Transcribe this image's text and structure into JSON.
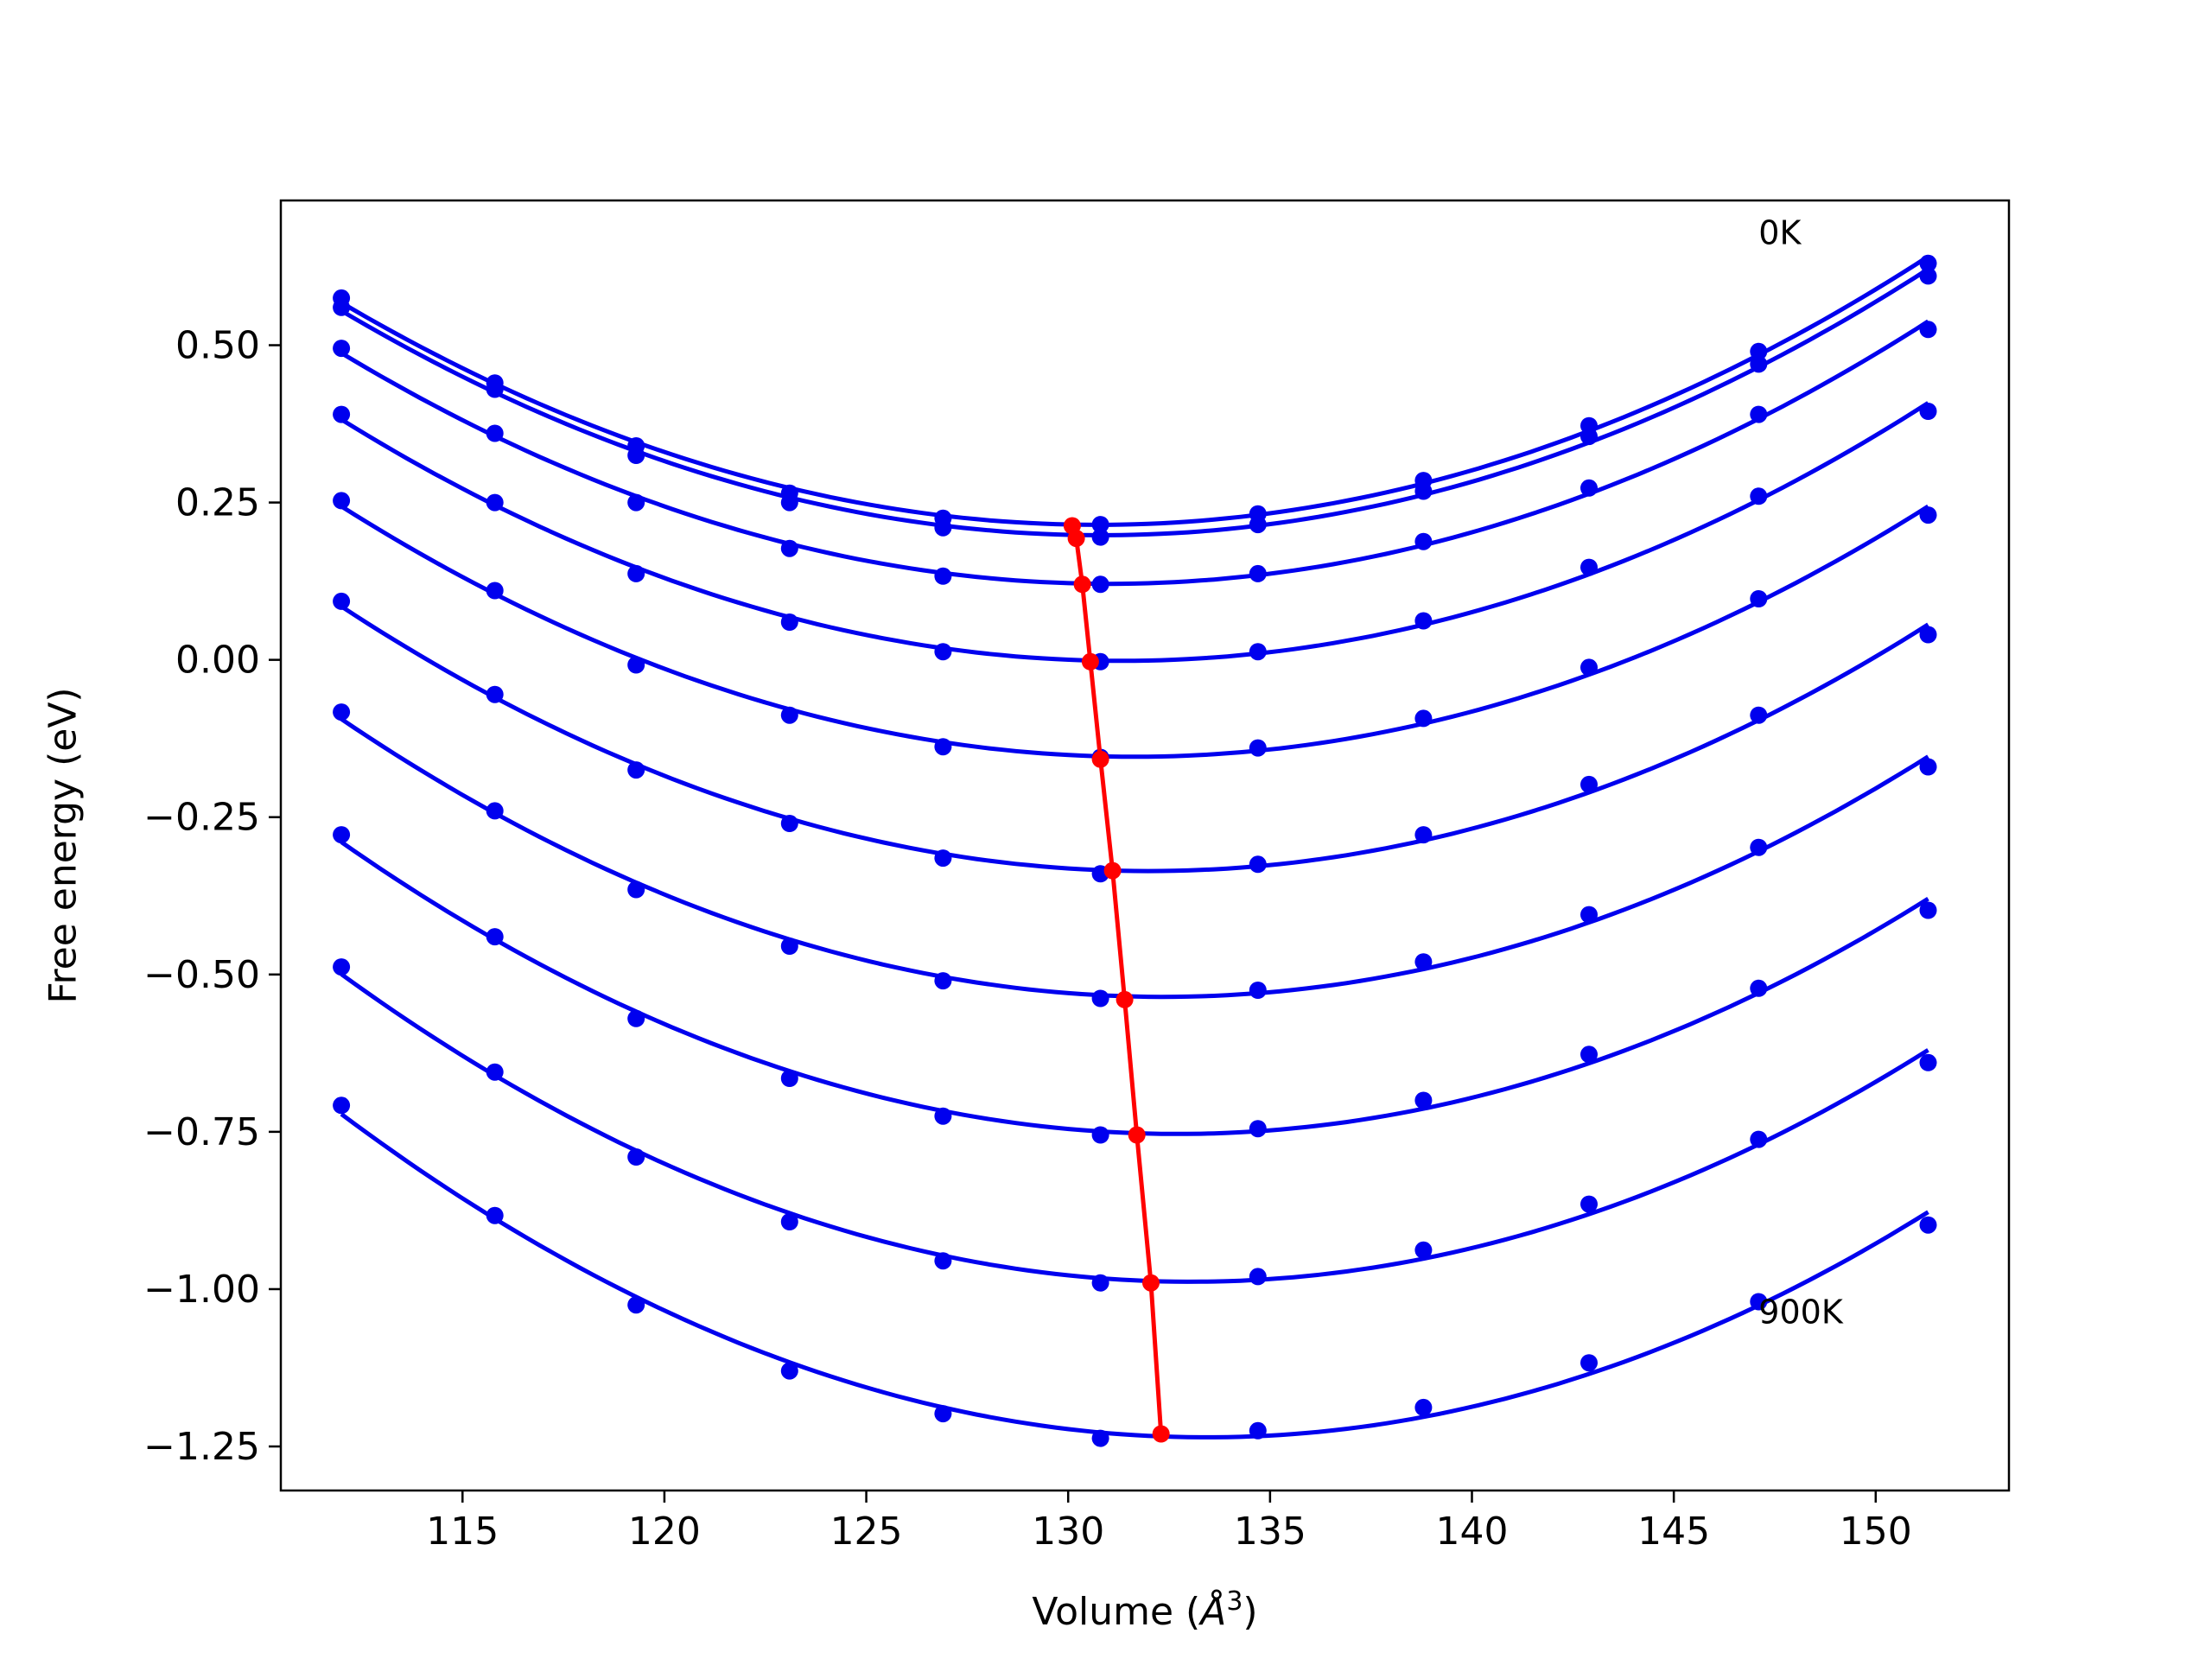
{
  "chart_data": {
    "type": "line",
    "title": "",
    "xlabel": "Volume (",
    "xlabel_symbol": "Å",
    "xlabel_exp": "3",
    "xlabel_close": ")",
    "ylabel": "Free energy (eV)",
    "xlim": [
      110.5,
      153.3
    ],
    "ylim": [
      -1.32,
      0.73
    ],
    "xticks": [
      115,
      120,
      125,
      130,
      135,
      140,
      145,
      150
    ],
    "xtick_labels": [
      "115",
      "120",
      "125",
      "130",
      "135",
      "140",
      "145",
      "150"
    ],
    "yticks": [
      0.5,
      0.25,
      0.0,
      -0.25,
      -0.5,
      -0.75,
      -1.0,
      -1.25
    ],
    "ytick_labels": [
      "0.50",
      "0.25",
      "0.00",
      "−0.25",
      "−0.50",
      "−0.75",
      "−1.00",
      "−1.25"
    ],
    "grid": false,
    "x": [
      112.0,
      115.8,
      119.3,
      123.1,
      126.9,
      130.8,
      134.7,
      138.8,
      142.9,
      147.1,
      151.3
    ],
    "series": [
      {
        "values": [
          0.575,
          0.44,
          0.34,
          0.265,
          0.225,
          0.215,
          0.232,
          0.285,
          0.372,
          0.49,
          0.63
        ]
      },
      {
        "values": [
          0.56,
          0.43,
          0.325,
          0.25,
          0.21,
          0.195,
          0.215,
          0.268,
          0.355,
          0.47,
          0.61
        ]
      },
      {
        "values": [
          0.495,
          0.36,
          0.25,
          0.177,
          0.133,
          0.12,
          0.137,
          0.188,
          0.273,
          0.39,
          0.525
        ]
      },
      {
        "values": [
          0.39,
          0.25,
          0.137,
          0.06,
          0.013,
          -0.003,
          0.013,
          0.062,
          0.147,
          0.26,
          0.395
        ]
      },
      {
        "values": [
          0.253,
          0.11,
          -0.008,
          -0.088,
          -0.138,
          -0.155,
          -0.14,
          -0.093,
          -0.012,
          0.097,
          0.23
        ]
      },
      {
        "values": [
          0.093,
          -0.055,
          -0.175,
          -0.26,
          -0.315,
          -0.34,
          -0.325,
          -0.278,
          -0.198,
          -0.088,
          0.04
        ]
      },
      {
        "values": [
          -0.083,
          -0.24,
          -0.365,
          -0.455,
          -0.51,
          -0.538,
          -0.525,
          -0.48,
          -0.405,
          -0.298,
          -0.17
        ]
      },
      {
        "values": [
          -0.278,
          -0.44,
          -0.57,
          -0.665,
          -0.725,
          -0.755,
          -0.745,
          -0.7,
          -0.627,
          -0.522,
          -0.398
        ]
      },
      {
        "values": [
          -0.488,
          -0.655,
          -0.79,
          -0.893,
          -0.955,
          -0.99,
          -0.98,
          -0.938,
          -0.865,
          -0.762,
          -0.64
        ]
      },
      {
        "values": [
          -0.708,
          -0.883,
          -1.025,
          -1.13,
          -1.198,
          -1.237,
          -1.225,
          -1.188,
          -1.117,
          -1.02,
          -0.898
        ]
      }
    ],
    "minima": {
      "x": [
        130.1,
        130.2,
        130.35,
        130.55,
        130.8,
        131.1,
        131.4,
        131.7,
        132.05,
        132.3
      ],
      "y": [
        0.213,
        0.193,
        0.12,
        -0.003,
        -0.158,
        -0.335,
        -0.54,
        -0.755,
        -0.99,
        -1.23
      ]
    },
    "annotations": [
      {
        "text": "0K",
        "x": 147.1,
        "y": 0.68
      },
      {
        "text": "900K",
        "x": 147.1,
        "y": -1.035
      }
    ],
    "colors": {
      "series": "#0000ee",
      "minima": "#ff0000",
      "axes": "#000000"
    }
  }
}
